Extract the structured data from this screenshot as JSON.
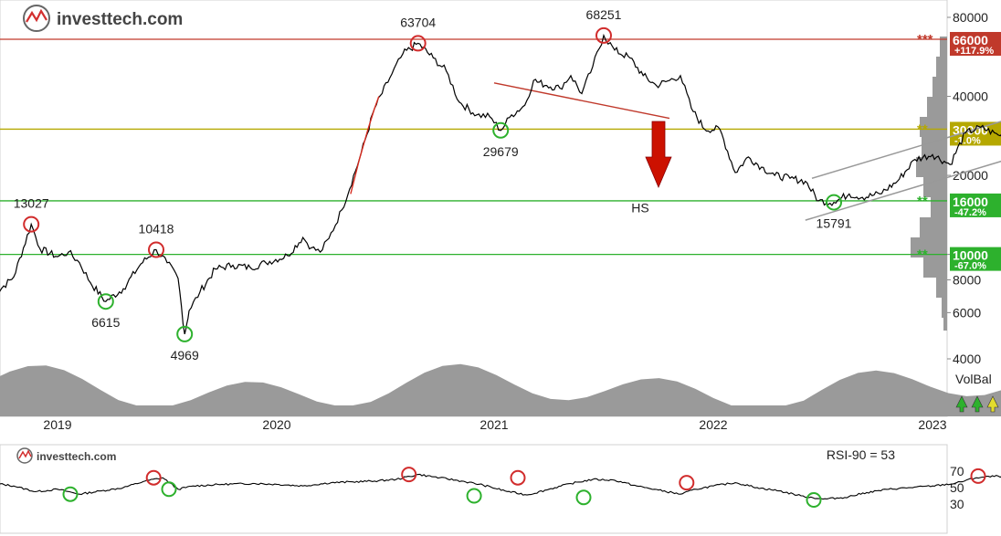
{
  "brand": {
    "name": "investtech.com"
  },
  "colors": {
    "resistance_red": "#c0392b",
    "level_olive": "#b5a800",
    "support_green": "#2db12d",
    "price_line": "#000000",
    "volume_fill": "#9a9a9a",
    "arrow_red": "#cc1100"
  },
  "chart_data": [
    {
      "type": "line",
      "panel": "price",
      "scale": "log",
      "ylim": [
        3000,
        90000
      ],
      "yticks": [
        4000,
        6000,
        8000,
        10000,
        20000,
        40000,
        80000
      ],
      "ytick_labels": [
        "4000",
        "6000",
        "8000",
        "10000",
        "20000",
        "40000",
        "80000"
      ],
      "xtick_labels": [
        "2019",
        "2020",
        "2021",
        "2022",
        "2023"
      ],
      "xticks": [
        2019.0,
        2020.0,
        2021.0,
        2022.0,
        2023.0
      ],
      "x_range": [
        2018.7,
        2023.65
      ],
      "series": [
        {
          "x": [
            2018.7,
            2018.8,
            2018.88,
            2018.92,
            2019.0,
            2019.05,
            2019.1,
            2019.15,
            2019.22,
            2019.3,
            2019.38,
            2019.45,
            2019.5,
            2019.55,
            2019.58,
            2019.6,
            2019.65,
            2019.72,
            2019.8,
            2019.88,
            2019.95,
            2020.05,
            2020.12,
            2020.16,
            2020.2,
            2020.24,
            2020.3,
            2020.38,
            2020.45,
            2020.52,
            2020.58,
            2020.65,
            2020.72,
            2020.78,
            2020.84,
            2020.92,
            2020.98,
            2021.03,
            2021.08,
            2021.14,
            2021.18,
            2021.24,
            2021.3,
            2021.35,
            2021.4,
            2021.45,
            2021.5,
            2021.55,
            2021.62,
            2021.68,
            2021.74,
            2021.8,
            2021.85,
            2021.9,
            2021.96,
            2022.03,
            2022.1,
            2022.16,
            2022.22,
            2022.28,
            2022.35,
            2022.42,
            2022.48,
            2022.55,
            2022.62,
            2022.68,
            2022.76,
            2022.84,
            2022.92,
            2023.0,
            2023.08,
            2023.15,
            2023.22,
            2023.3,
            2023.4,
            2023.5,
            2023.58,
            2023.65
          ],
          "values": [
            6900,
            8200,
            13027,
            10500,
            9800,
            10200,
            9300,
            7800,
            6615,
            7400,
            9200,
            10418,
            9300,
            8100,
            4969,
            6100,
            7200,
            8800,
            9100,
            8900,
            9300,
            9900,
            11600,
            10600,
            10200,
            11500,
            14800,
            23000,
            36000,
            47000,
            58000,
            63704,
            56000,
            50000,
            38000,
            34000,
            33500,
            29679,
            34000,
            37000,
            46000,
            44000,
            43000,
            48000,
            41000,
            52000,
            68251,
            60000,
            56000,
            48000,
            44000,
            46000,
            48000,
            36000,
            30000,
            30000,
            20500,
            23500,
            21500,
            20000,
            19500,
            19000,
            16000,
            15791,
            17000,
            16500,
            17000,
            19000,
            23000,
            24000,
            22000,
            29000,
            30500,
            28500,
            29500,
            28000,
            27000,
            30000
          ]
        }
      ],
      "annotations": [
        {
          "text": "63704",
          "x": 2020.65,
          "y": 63704
        },
        {
          "text": "68251",
          "x": 2021.5,
          "y": 68251
        },
        {
          "text": "29679",
          "x": 2021.03,
          "y": 29679
        },
        {
          "text": "13027",
          "x": 2018.88,
          "y": 13027
        },
        {
          "text": "10418",
          "x": 2019.45,
          "y": 10418
        },
        {
          "text": "6615",
          "x": 2019.22,
          "y": 6615
        },
        {
          "text": "4969",
          "x": 2019.58,
          "y": 4969
        },
        {
          "text": "15791",
          "x": 2022.55,
          "y": 15791
        },
        {
          "text": "HS",
          "x": 2021.75,
          "y": 19000
        }
      ],
      "levels": [
        {
          "value": 66000,
          "label": "66000",
          "change": "+117.9%",
          "color": "#c0392b",
          "stars": "***"
        },
        {
          "value": 30000,
          "label": "30000",
          "change": "-1.0%",
          "color": "#b5a800",
          "stars": "**"
        },
        {
          "value": 16000,
          "label": "16000",
          "change": "-47.2%",
          "color": "#2db12d",
          "stars": "**"
        },
        {
          "value": 10000,
          "label": "10000",
          "change": "-67.0%",
          "color": "#2db12d",
          "stars": "**"
        }
      ],
      "trend_channel": {
        "lower": [
          [
            2022.42,
            13500
          ],
          [
            2023.65,
            27500
          ]
        ],
        "upper": [
          [
            2022.45,
            19500
          ],
          [
            2023.65,
            39000
          ]
        ]
      },
      "neckline": [
        [
          2021.0,
          45000
        ],
        [
          2021.8,
          33000
        ]
      ],
      "volume_label": "VolBal"
    },
    {
      "type": "line",
      "panel": "indicator",
      "title": "RSI-90 = 53",
      "ylim": [
        20,
        80
      ],
      "yticks": [
        30,
        50,
        70
      ],
      "ytick_labels": [
        "30",
        "50",
        "70"
      ],
      "series": [
        {
          "x": [
            2018.72,
            2018.8,
            2018.9,
            2019.0,
            2019.1,
            2019.2,
            2019.3,
            2019.4,
            2019.48,
            2019.55,
            2019.62,
            2019.75,
            2019.9,
            2020.0,
            2020.12,
            2020.25,
            2020.35,
            2020.45,
            2020.55,
            2020.65,
            2020.75,
            2020.85,
            2020.95,
            2021.05,
            2021.15,
            2021.25,
            2021.35,
            2021.45,
            2021.55,
            2021.65,
            2021.75,
            2021.85,
            2021.92,
            2022.0,
            2022.1,
            2022.2,
            2022.3,
            2022.4,
            2022.5,
            2022.6,
            2022.7,
            2022.8,
            2022.9,
            2023.0,
            2023.1,
            2023.2,
            2023.3,
            2023.4,
            2023.5,
            2023.6,
            2023.65
          ],
          "values": [
            55,
            52,
            45,
            48,
            42,
            46,
            50,
            58,
            62,
            48,
            52,
            54,
            55,
            54,
            52,
            56,
            57,
            58,
            60,
            66,
            62,
            58,
            53,
            46,
            41,
            48,
            55,
            60,
            59,
            52,
            47,
            42,
            48,
            52,
            56,
            50,
            46,
            40,
            36,
            38,
            44,
            48,
            50,
            52,
            55,
            62,
            64,
            61,
            57,
            50,
            53
          ]
        }
      ]
    }
  ]
}
